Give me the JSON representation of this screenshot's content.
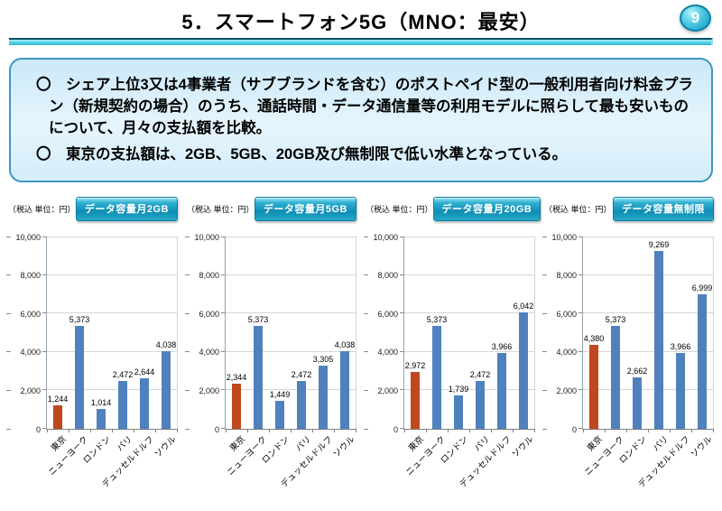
{
  "header": {
    "title": "5．スマートフォン5G（MNO：最安）",
    "page_number": "9"
  },
  "summary": {
    "bullets": [
      "〇　シェア上位3又は4事業者（サブブランドを含む）のポストペイド型の一般利用者向け料金プラン（新規契約の場合）のうち、通話時間・データ通信量等の利用モデルに照らして最も安いものについて、月々の支払額を比較。",
      "〇　東京の支払額は、2GB、5GB、20GB及び無制限で低い水準となっている。"
    ]
  },
  "colors": {
    "bar_blue": "#4f81bd",
    "bar_red": "#c0481e",
    "gridline": "#d6d6d6",
    "box_border": "#3f96c3",
    "accent_cyan": "#2db3d4",
    "badge_border": "#0c81a8"
  },
  "chart_data": [
    {
      "type": "bar",
      "title": "データ容量月2GB",
      "unit_label": "（税込 単位：円）",
      "categories": [
        "東京",
        "ニューヨーク",
        "ロンドン",
        "パリ",
        "デュッセルドルフ",
        "ソウル"
      ],
      "values": [
        1244,
        5373,
        1014,
        2472,
        2644,
        4038
      ],
      "value_labels": [
        "1,244",
        "5,373",
        "1,014",
        "2,472",
        "2,644",
        "4,038"
      ],
      "highlight_category": "東京",
      "ylim": [
        0,
        10000
      ],
      "ytick_labels": [
        "0",
        "2,000",
        "4,000",
        "6,000",
        "8,000",
        "10,000"
      ],
      "grid": true,
      "legend": "none"
    },
    {
      "type": "bar",
      "title": "データ容量月5GB",
      "unit_label": "（税込 単位：円）",
      "categories": [
        "東京",
        "ニューヨーク",
        "ロンドン",
        "パリ",
        "デュッセルドルフ",
        "ソウル"
      ],
      "values": [
        2344,
        5373,
        1449,
        2472,
        3305,
        4038
      ],
      "value_labels": [
        "2,344",
        "5,373",
        "1,449",
        "2,472",
        "3,305",
        "4,038"
      ],
      "highlight_category": "東京",
      "ylim": [
        0,
        10000
      ],
      "ytick_labels": [
        "0",
        "2,000",
        "4,000",
        "6,000",
        "8,000",
        "10,000"
      ],
      "grid": true,
      "legend": "none"
    },
    {
      "type": "bar",
      "title": "データ容量月20GB",
      "unit_label": "（税込 単位：円）",
      "categories": [
        "東京",
        "ニューヨーク",
        "ロンドン",
        "パリ",
        "デュッセルドルフ",
        "ソウル"
      ],
      "values": [
        2972,
        5373,
        1739,
        2472,
        3966,
        6042
      ],
      "value_labels": [
        "2,972",
        "5,373",
        "1,739",
        "2,472",
        "3,966",
        "6,042"
      ],
      "highlight_category": "東京",
      "ylim": [
        0,
        10000
      ],
      "ytick_labels": [
        "0",
        "2,000",
        "4,000",
        "6,000",
        "8,000",
        "10,000"
      ],
      "grid": true,
      "legend": "none"
    },
    {
      "type": "bar",
      "title": "データ容量無制限",
      "unit_label": "（税込 単位：円）",
      "categories": [
        "東京",
        "ニューヨーク",
        "ロンドン",
        "パリ",
        "デュッセルドルフ",
        "ソウル"
      ],
      "values": [
        4380,
        5373,
        2662,
        9269,
        3966,
        6999
      ],
      "value_labels": [
        "4,380",
        "5,373",
        "2,662",
        "9,269",
        "3,966",
        "6,999"
      ],
      "highlight_category": "東京",
      "ylim": [
        0,
        10000
      ],
      "ytick_labels": [
        "0",
        "2,000",
        "4,000",
        "6,000",
        "8,000",
        "10,000"
      ],
      "grid": true,
      "legend": "none"
    }
  ]
}
